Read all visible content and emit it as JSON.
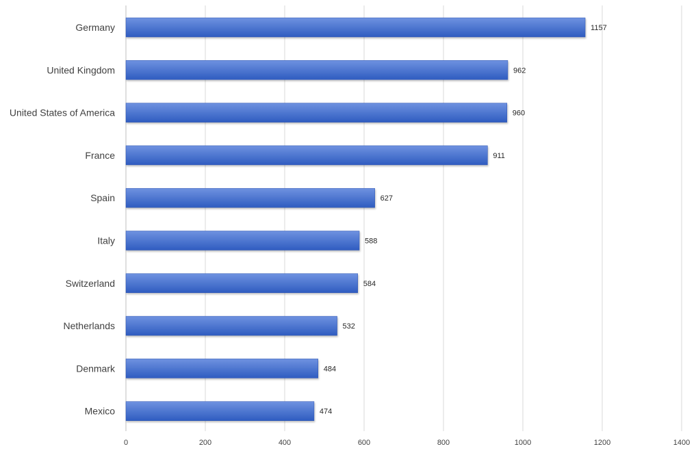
{
  "chart_data": {
    "type": "bar",
    "orientation": "horizontal",
    "title": "",
    "xlabel": "",
    "ylabel": "",
    "categories": [
      "Germany",
      "United Kingdom",
      "United States of America",
      "France",
      "Spain",
      "Italy",
      "Switzerland",
      "Netherlands",
      "Denmark",
      "Mexico"
    ],
    "values": [
      1157,
      962,
      960,
      911,
      627,
      588,
      584,
      532,
      484,
      474
    ],
    "xlim": [
      0,
      1400
    ],
    "xticks": [
      0,
      200,
      400,
      600,
      800,
      1000,
      1200,
      1400
    ],
    "grid": true,
    "legend": "none",
    "data_labels": true,
    "colors": {
      "bar_top": "#6f92e0",
      "bar_bottom": "#2f5cc0",
      "bar_edge": "#2a52b0",
      "grid": "#d9d9d9",
      "axis": "#bfbfbf"
    }
  }
}
